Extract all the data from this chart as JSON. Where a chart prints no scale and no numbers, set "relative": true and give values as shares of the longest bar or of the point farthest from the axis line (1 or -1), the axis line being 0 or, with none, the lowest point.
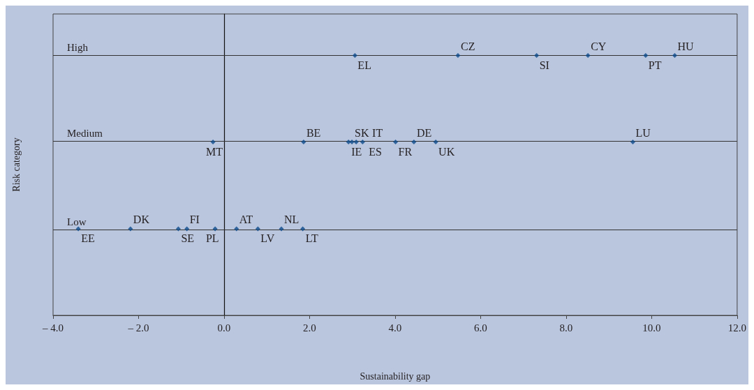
{
  "chart_data": {
    "type": "scatter",
    "xlabel": "Sustainability gap",
    "ylabel": "Risk category",
    "relative": true,
    "x": [
      3.06,
      5.47,
      7.31,
      8.51,
      9.86,
      10.54,
      -0.26,
      1.86,
      2.91,
      2.99,
      3.09,
      3.24,
      4.01,
      4.44,
      4.95,
      9.56,
      -3.41,
      -2.19,
      -1.07,
      -0.87,
      -0.21,
      0.29,
      0.79,
      1.34,
      1.84
    ],
    "series": [
      {
        "color": "#0b4a8a",
        "values": [
          1,
          1,
          1,
          1,
          1,
          1,
          0.667,
          0.667,
          0.667,
          0.667,
          0.667,
          0.667,
          0.667,
          0.667,
          0.667,
          0.667,
          0.333,
          0.333,
          0.333,
          0.333,
          0.333,
          0.333,
          0.333,
          0.333,
          0.333
        ]
      }
    ],
    "annotations": [
      {
        "text": "EL",
        "x": 3.06,
        "y": 1
      },
      {
        "text": "CZ",
        "x": 5.47,
        "y": 1
      },
      {
        "text": "SI",
        "x": 7.31,
        "y": 1
      },
      {
        "text": "CY",
        "x": 8.51,
        "y": 1
      },
      {
        "text": "PT",
        "x": 9.86,
        "y": 1
      },
      {
        "text": "HU",
        "x": 10.54,
        "y": 1
      },
      {
        "text": "MT",
        "x": -0.26,
        "y": 0.667
      },
      {
        "text": "BE",
        "x": 1.86,
        "y": 0.667
      },
      {
        "text": "IE",
        "x": 2.91,
        "y": 0.667
      },
      {
        "text": "SK",
        "x": 2.99,
        "y": 0.667
      },
      {
        "text": "ES",
        "x": 3.09,
        "y": 0.667
      },
      {
        "text": "IT",
        "x": 3.24,
        "y": 0.667
      },
      {
        "text": "FR",
        "x": 4.01,
        "y": 0.667
      },
      {
        "text": "DE",
        "x": 4.44,
        "y": 0.667
      },
      {
        "text": "UK",
        "x": 4.95,
        "y": 0.667
      },
      {
        "text": "LU",
        "x": 9.56,
        "y": 0.667
      },
      {
        "text": "EE",
        "x": -3.41,
        "y": 0.333
      },
      {
        "text": "DK",
        "x": -2.19,
        "y": 0.333
      },
      {
        "text": "SE",
        "x": -1.07,
        "y": 0.333
      },
      {
        "text": "FI",
        "x": -0.87,
        "y": 0.333
      },
      {
        "text": "PL",
        "x": -0.21,
        "y": 0.333
      },
      {
        "text": "AT",
        "x": 0.29,
        "y": 0.333
      },
      {
        "text": "LV",
        "x": 0.79,
        "y": 0.333
      },
      {
        "text": "NL",
        "x": 1.34,
        "y": 0.333
      },
      {
        "text": "LT",
        "x": 1.84,
        "y": 0.333
      }
    ],
    "xlim": [
      -4,
      12
    ],
    "xticks": [
      {
        "value": -4,
        "label": "– 4.0"
      },
      {
        "value": -2,
        "label": "– 2.0"
      },
      {
        "value": 0,
        "label": "0.0"
      },
      {
        "value": 2,
        "label": "2.0"
      },
      {
        "value": 4,
        "label": "4.0"
      },
      {
        "value": 6,
        "label": "6.0"
      },
      {
        "value": 8,
        "label": "8.0"
      },
      {
        "value": 10,
        "label": "10.0"
      },
      {
        "value": 12,
        "label": "12.0"
      }
    ],
    "ref_lines": [
      {
        "axis": "x",
        "value": 0
      },
      {
        "axis": "y",
        "value": 1,
        "label": "High"
      },
      {
        "axis": "y",
        "value": 0.667,
        "label": "Medium"
      },
      {
        "axis": "y",
        "value": 0.333,
        "label": "Low"
      }
    ],
    "marker": "diamond"
  }
}
